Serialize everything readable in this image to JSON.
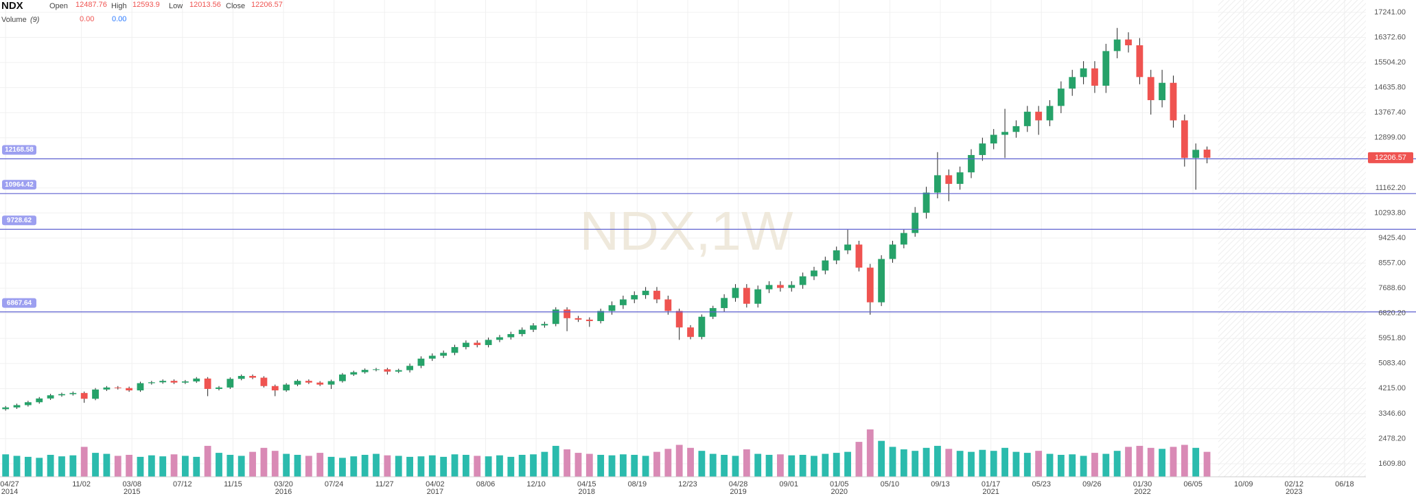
{
  "header": {
    "symbol": "NDX",
    "open_label": "Open",
    "high_label": "High",
    "low_label": "Low",
    "close_label": "Close",
    "volume_label": "Volume",
    "volume_period": "(9)",
    "volume_values": [
      "0.00",
      "0.00"
    ]
  },
  "chart_data": {
    "type": "candlestick",
    "watermark": "NDX,1W",
    "x": [
      0,
      4,
      8,
      12,
      16,
      20,
      24,
      28,
      32,
      36,
      40,
      44,
      48,
      52,
      56,
      60,
      64,
      68,
      72,
      76,
      80,
      84,
      88,
      92,
      96,
      100,
      104,
      108,
      112,
      116,
      120,
      124,
      128,
      132,
      136,
      140,
      144,
      148,
      152,
      156,
      160,
      164,
      168,
      172,
      176,
      180,
      184,
      188,
      192,
      196,
      200,
      204,
      208,
      212,
      216,
      220,
      224,
      228,
      232,
      236,
      240,
      244,
      248,
      252,
      256,
      260,
      264,
      268,
      272,
      276,
      280,
      284,
      288,
      292,
      296,
      300,
      304,
      308,
      312,
      316,
      320,
      324,
      328,
      332,
      336,
      340,
      344,
      348,
      352,
      356,
      360,
      364,
      368,
      372,
      376,
      380,
      384,
      388,
      392,
      396,
      400,
      404,
      408,
      412,
      416,
      420,
      424,
      428
    ],
    "open": [
      3500,
      3560,
      3640,
      3740,
      3870,
      3980,
      4020,
      4060,
      3860,
      4180,
      4250,
      4230,
      4150,
      4400,
      4430,
      4480,
      4420,
      4460,
      4560,
      4200,
      4250,
      4550,
      4650,
      4590,
      4300,
      4150,
      4350,
      4480,
      4420,
      4350,
      4470,
      4700,
      4780,
      4860,
      4880,
      4800,
      4850,
      5000,
      5250,
      5350,
      5450,
      5650,
      5800,
      5720,
      5900,
      5990,
      6100,
      6250,
      6400,
      6450,
      6950,
      6650,
      6600,
      6550,
      6900,
      7100,
      7300,
      7450,
      7600,
      7300,
      6900,
      6330,
      6000,
      6700,
      7000,
      7350,
      7700,
      7150,
      7650,
      7800,
      7700,
      7800,
      8100,
      8300,
      8650,
      9000,
      9200,
      8400,
      7200,
      8700,
      9200,
      9600,
      10300,
      11000,
      11600,
      11300,
      11700,
      12300,
      12700,
      13000,
      13100,
      13300,
      13800,
      13500,
      14000,
      14600,
      15000,
      15300,
      14700,
      15900,
      16300,
      16100,
      15000,
      14200,
      14800,
      13500,
      12200,
      12487.76
    ],
    "high": [
      3610,
      3690,
      3790,
      3920,
      4030,
      4070,
      4110,
      4110,
      4230,
      4300,
      4300,
      4280,
      4450,
      4480,
      4530,
      4530,
      4510,
      4610,
      4610,
      4300,
      4600,
      4700,
      4700,
      4640,
      4350,
      4400,
      4530,
      4530,
      4470,
      4520,
      4750,
      4830,
      4910,
      4930,
      4930,
      4900,
      5080,
      5330,
      5430,
      5530,
      5730,
      5880,
      5880,
      5980,
      6070,
      6180,
      6330,
      6480,
      6530,
      7030,
      7030,
      6730,
      6680,
      6980,
      7230,
      7430,
      7580,
      7730,
      7730,
      7430,
      6980,
      6410,
      6780,
      7080,
      7480,
      7830,
      7830,
      7780,
      7930,
      7930,
      7930,
      8230,
      8430,
      8780,
      9130,
      9720,
      9330,
      8530,
      8830,
      9330,
      9730,
      10500,
      11200,
      12400,
      11800,
      11900,
      12500,
      12900,
      13200,
      13900,
      13500,
      14000,
      14000,
      14200,
      14850,
      15250,
      15550,
      15550,
      16150,
      16700,
      16550,
      16350,
      15250,
      15250,
      15050,
      13700,
      12700,
      12593.9
    ],
    "low": [
      3450,
      3510,
      3590,
      3690,
      3820,
      3930,
      3970,
      3720,
      3810,
      4130,
      4180,
      4100,
      4100,
      4350,
      4380,
      4370,
      4370,
      4410,
      3950,
      4150,
      4200,
      4500,
      4540,
      4250,
      3950,
      4100,
      4300,
      4370,
      4300,
      4200,
      4420,
      4650,
      4730,
      4810,
      4700,
      4750,
      4770,
      4920,
      5170,
      5270,
      5370,
      5570,
      5640,
      5640,
      5820,
      5910,
      6020,
      6170,
      6320,
      6370,
      6200,
      6520,
      6350,
      6470,
      6770,
      6970,
      7170,
      7320,
      7170,
      6770,
      5900,
      5920,
      5920,
      6620,
      6870,
      7220,
      7020,
      7020,
      7520,
      7570,
      7570,
      7670,
      7970,
      8170,
      8520,
      8870,
      8270,
      6770,
      7070,
      8570,
      9070,
      9470,
      10100,
      10800,
      10700,
      11100,
      11500,
      12100,
      12500,
      12200,
      12900,
      13100,
      13000,
      13300,
      13750,
      14350,
      14750,
      14450,
      14450,
      15650,
      15850,
      14750,
      13700,
      13950,
      13250,
      11900,
      11100,
      12013.56
    ],
    "close": [
      3560,
      3640,
      3740,
      3870,
      3980,
      4020,
      4060,
      3860,
      4180,
      4250,
      4230,
      4150,
      4400,
      4430,
      4480,
      4420,
      4460,
      4560,
      4200,
      4250,
      4550,
      4650,
      4590,
      4300,
      4150,
      4350,
      4480,
      4420,
      4350,
      4470,
      4700,
      4780,
      4860,
      4880,
      4800,
      4850,
      5000,
      5250,
      5350,
      5450,
      5650,
      5800,
      5720,
      5900,
      5990,
      6100,
      6250,
      6400,
      6450,
      6950,
      6650,
      6600,
      6550,
      6900,
      7100,
      7300,
      7450,
      7600,
      7300,
      6900,
      6330,
      6000,
      6700,
      7000,
      7350,
      7700,
      7150,
      7650,
      7800,
      7700,
      7800,
      8100,
      8300,
      8650,
      9000,
      9200,
      8400,
      7200,
      8700,
      9200,
      9600,
      10300,
      11000,
      11600,
      11300,
      11700,
      12300,
      12700,
      13000,
      13100,
      13300,
      13800,
      13500,
      14000,
      14600,
      15000,
      15300,
      14700,
      15900,
      16300,
      16100,
      15000,
      14200,
      14800,
      13500,
      12200,
      12480,
      12206.57
    ],
    "volume": [
      45,
      42,
      40,
      38,
      44,
      41,
      43,
      60,
      48,
      46,
      42,
      44,
      40,
      43,
      41,
      45,
      42,
      40,
      62,
      48,
      44,
      42,
      50,
      58,
      52,
      46,
      44,
      42,
      48,
      40,
      38,
      41,
      44,
      46,
      43,
      42,
      40,
      41,
      43,
      40,
      45,
      44,
      42,
      41,
      43,
      40,
      44,
      45,
      50,
      62,
      55,
      48,
      46,
      44,
      43,
      45,
      44,
      42,
      50,
      56,
      64,
      58,
      52,
      46,
      44,
      42,
      55,
      46,
      44,
      45,
      43,
      44,
      42,
      46,
      48,
      50,
      70,
      95,
      72,
      60,
      55,
      52,
      58,
      62,
      56,
      52,
      50,
      54,
      52,
      58,
      50,
      48,
      52,
      46,
      44,
      45,
      42,
      48,
      46,
      52,
      60,
      62,
      58,
      56,
      60,
      64,
      58,
      50
    ],
    "up_color": "#26a269",
    "down_color": "#ef5350",
    "volume_up_color": "#2bbbad",
    "volume_down_color": "#d98ab5",
    "xlim": [
      -2,
      484.6
    ],
    "ylim": [
      1158,
      17668
    ],
    "volume_lim": [
      0,
      110
    ],
    "yticks": [
      {
        "value": 17241,
        "label": "17241.00"
      },
      {
        "value": 16372.6,
        "label": "16372.60"
      },
      {
        "value": 15504.2,
        "label": "15504.20"
      },
      {
        "value": 14635.8,
        "label": "14635.80"
      },
      {
        "value": 13767.4,
        "label": "13767.40"
      },
      {
        "value": 12899,
        "label": "12899.00"
      },
      {
        "value": 11162.2,
        "label": "11162.20"
      },
      {
        "value": 10293.8,
        "label": "10293.80"
      },
      {
        "value": 9425.4,
        "label": "9425.40"
      },
      {
        "value": 8557,
        "label": "8557.00"
      },
      {
        "value": 7688.6,
        "label": "7688.60"
      },
      {
        "value": 6820.2,
        "label": "6820.20"
      },
      {
        "value": 5951.8,
        "label": "5951.80"
      },
      {
        "value": 5083.4,
        "label": "5083.40"
      },
      {
        "value": 4215,
        "label": "4215.00"
      },
      {
        "value": 3346.6,
        "label": "3346.60"
      },
      {
        "value": 2478.2,
        "label": "2478.20"
      },
      {
        "value": 1609.8,
        "label": "1609.80"
      }
    ],
    "xticks": [
      {
        "value": 0,
        "label": "04/27",
        "year": "2014"
      },
      {
        "value": 27,
        "label": "11/02"
      },
      {
        "value": 45,
        "label": "03/08",
        "year": "2015"
      },
      {
        "value": 63,
        "label": "07/12"
      },
      {
        "value": 81,
        "label": "11/15"
      },
      {
        "value": 99,
        "label": "03/20",
        "year": "2016"
      },
      {
        "value": 117,
        "label": "07/24"
      },
      {
        "value": 135,
        "label": "11/27"
      },
      {
        "value": 153,
        "label": "04/02",
        "year": "2017"
      },
      {
        "value": 171,
        "label": "08/06"
      },
      {
        "value": 189,
        "label": "12/10"
      },
      {
        "value": 207,
        "label": "04/15",
        "year": "2018"
      },
      {
        "value": 225,
        "label": "08/19"
      },
      {
        "value": 243,
        "label": "12/23"
      },
      {
        "value": 261,
        "label": "04/28",
        "year": "2019"
      },
      {
        "value": 279,
        "label": "09/01"
      },
      {
        "value": 297,
        "label": "01/05",
        "year": "2020"
      },
      {
        "value": 315,
        "label": "05/10"
      },
      {
        "value": 333,
        "label": "09/13"
      },
      {
        "value": 351,
        "label": "01/17",
        "year": "2021"
      },
      {
        "value": 369,
        "label": "05/23"
      },
      {
        "value": 387,
        "label": "09/26"
      },
      {
        "value": 405,
        "label": "01/30",
        "year": "2022"
      },
      {
        "value": 423,
        "label": "06/05"
      },
      {
        "value": 441,
        "label": "10/09"
      },
      {
        "value": 459,
        "label": "02/12",
        "year": "2023"
      },
      {
        "value": 477,
        "label": "06/18"
      }
    ],
    "hlines": [
      12168.58,
      10964.42,
      9728.62,
      6867.64
    ],
    "hline_color": "#5c5fcf",
    "grid": true
  }
}
